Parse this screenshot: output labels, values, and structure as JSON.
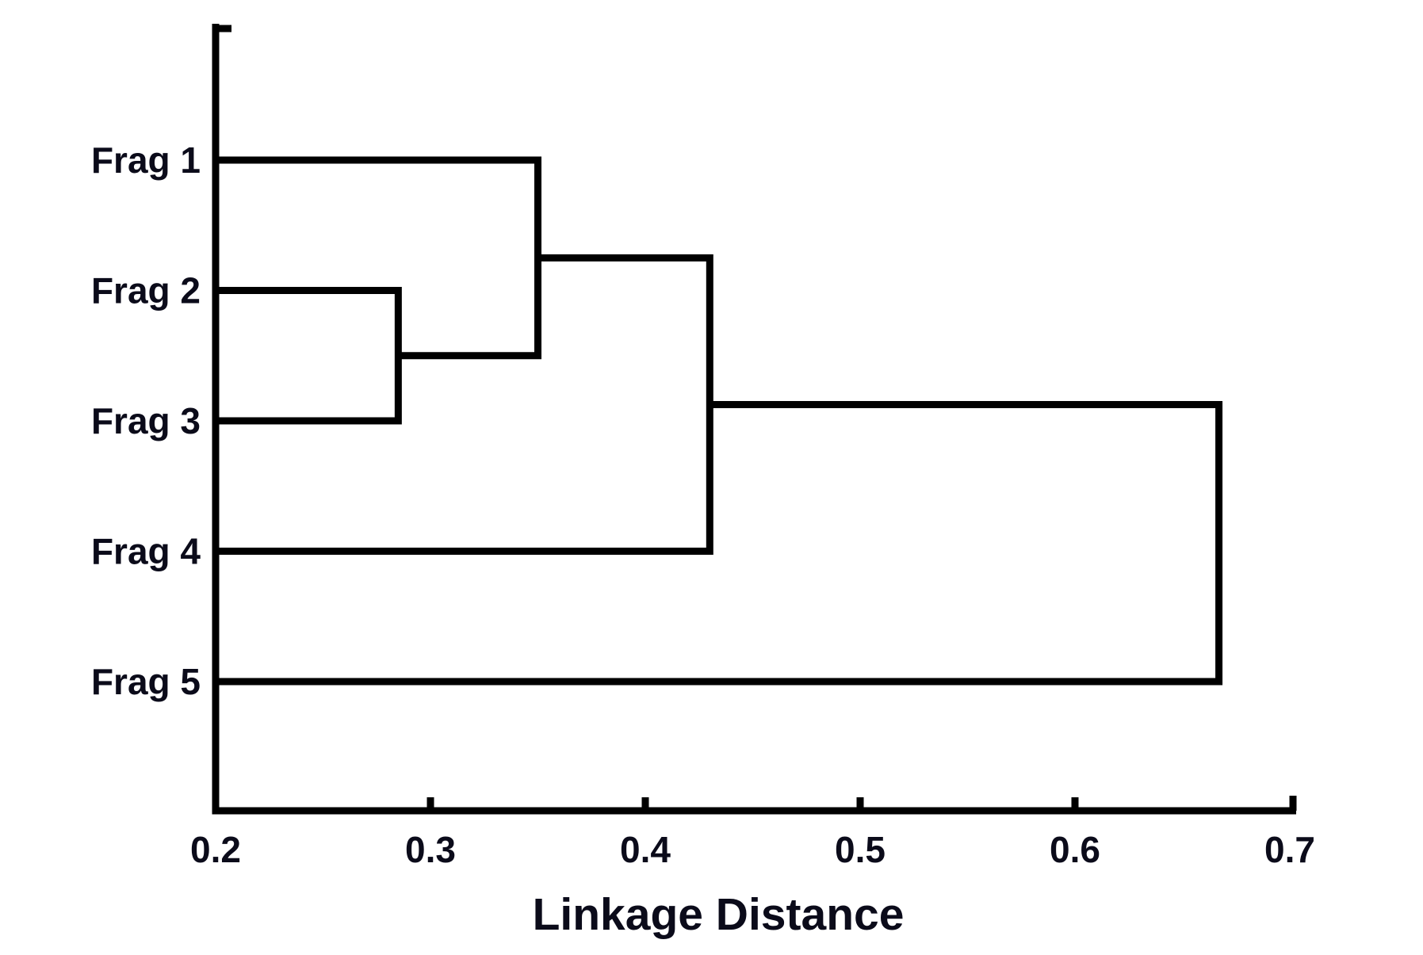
{
  "figure": {
    "background": "#ffffff",
    "line_color": "#000000",
    "text_color": "#0b0b1a"
  },
  "chart_data": {
    "type": "dendrogram",
    "orientation": "horizontal",
    "xlabel": "Linkage Distance",
    "leaves": [
      "Frag 1",
      "Frag 2",
      "Frag 3",
      "Frag 4",
      "Frag 5"
    ],
    "linkage": [
      {
        "id": 5,
        "children": [
          1,
          2
        ],
        "distance": 0.285,
        "note": "Frag 2 + Frag 3"
      },
      {
        "id": 6,
        "children": [
          0,
          5
        ],
        "distance": 0.35,
        "note": "Frag 1 + (Frag 2, Frag 3)"
      },
      {
        "id": 7,
        "children": [
          6,
          3
        ],
        "distance": 0.43,
        "note": "(Frag 1, Frag 2, Frag 3) + Frag 4"
      },
      {
        "id": 8,
        "children": [
          7,
          4
        ],
        "distance": 0.667,
        "note": "(Frag 1..4) + Frag 5"
      }
    ],
    "x_axis": {
      "min": 0.2,
      "max": 0.7,
      "tick_values": [
        0.2,
        0.3,
        0.4,
        0.5,
        0.6,
        0.7
      ],
      "tick_labels": [
        "0.2",
        "0.3",
        "0.4",
        "0.5",
        "0.6",
        "0.7"
      ]
    },
    "grid": false,
    "legend": null
  }
}
